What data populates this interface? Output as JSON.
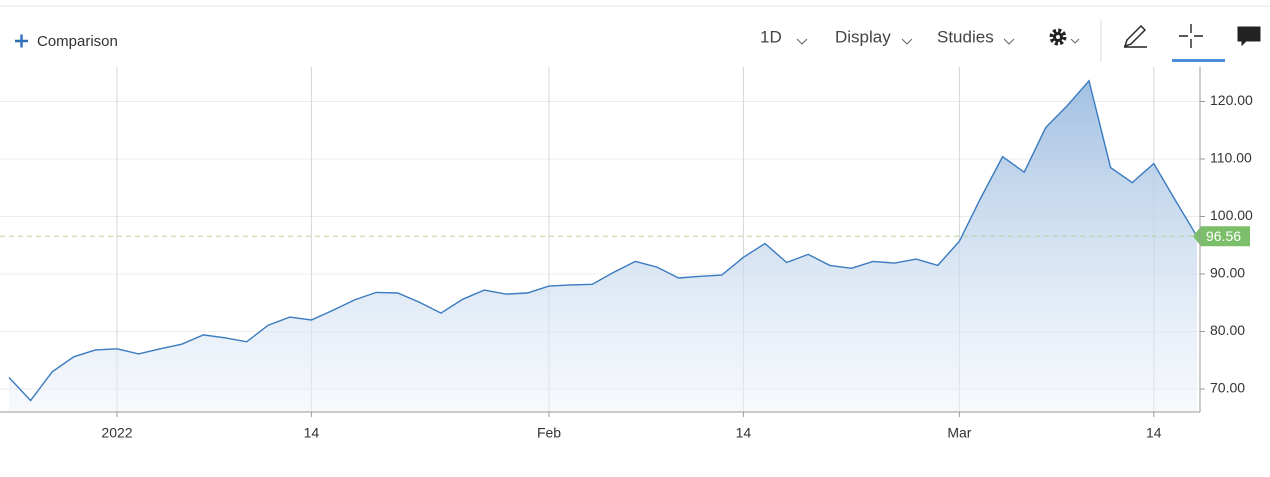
{
  "toolbar": {
    "comparison": "Comparison",
    "interval": "1D",
    "display": "Display",
    "studies": "Studies"
  },
  "chart_data": {
    "type": "line",
    "categories": [
      null,
      null,
      null,
      null,
      null,
      "2022",
      null,
      null,
      null,
      null,
      null,
      null,
      null,
      null,
      "14",
      null,
      null,
      null,
      null,
      null,
      null,
      null,
      null,
      null,
      null,
      "Feb",
      null,
      null,
      null,
      null,
      null,
      null,
      null,
      null,
      "14",
      null,
      null,
      null,
      null,
      null,
      null,
      null,
      null,
      null,
      "Mar",
      null,
      null,
      null,
      null,
      null,
      null,
      null,
      null,
      "14",
      null,
      null
    ],
    "series": [
      {
        "color": "#3a7bbf",
        "values": [
          72,
          68,
          73,
          75.6,
          76.8,
          77,
          76.1,
          77,
          77.8,
          79.4,
          78.9,
          78.2,
          81.1,
          82.5,
          82,
          83.7,
          85.5,
          86.8,
          86.7,
          85.1,
          83.2,
          85.6,
          87.2,
          86.5,
          86.7,
          87.9,
          88.1,
          88.2,
          90.3,
          92.2,
          91.2,
          89.3,
          89.6,
          89.8,
          92.9,
          95.3,
          92,
          93.4,
          91.5,
          91,
          92.2,
          91.9,
          92.6,
          91.5,
          95.7,
          103.3,
          110.4,
          107.7,
          115.5,
          119.3,
          123.6,
          108.5,
          105.9,
          109.2,
          102.8,
          96.56
        ]
      }
    ],
    "ylim": [
      66,
      126
    ],
    "yticks": [
      {
        "value": 70,
        "label": "70.00"
      },
      {
        "value": 80,
        "label": "80.00"
      },
      {
        "value": 90,
        "label": "90.00"
      },
      {
        "value": 100,
        "label": "100.00"
      },
      {
        "value": 110,
        "label": "110.00"
      },
      {
        "value": 120,
        "label": "120.00"
      }
    ],
    "grid": true
  }
}
